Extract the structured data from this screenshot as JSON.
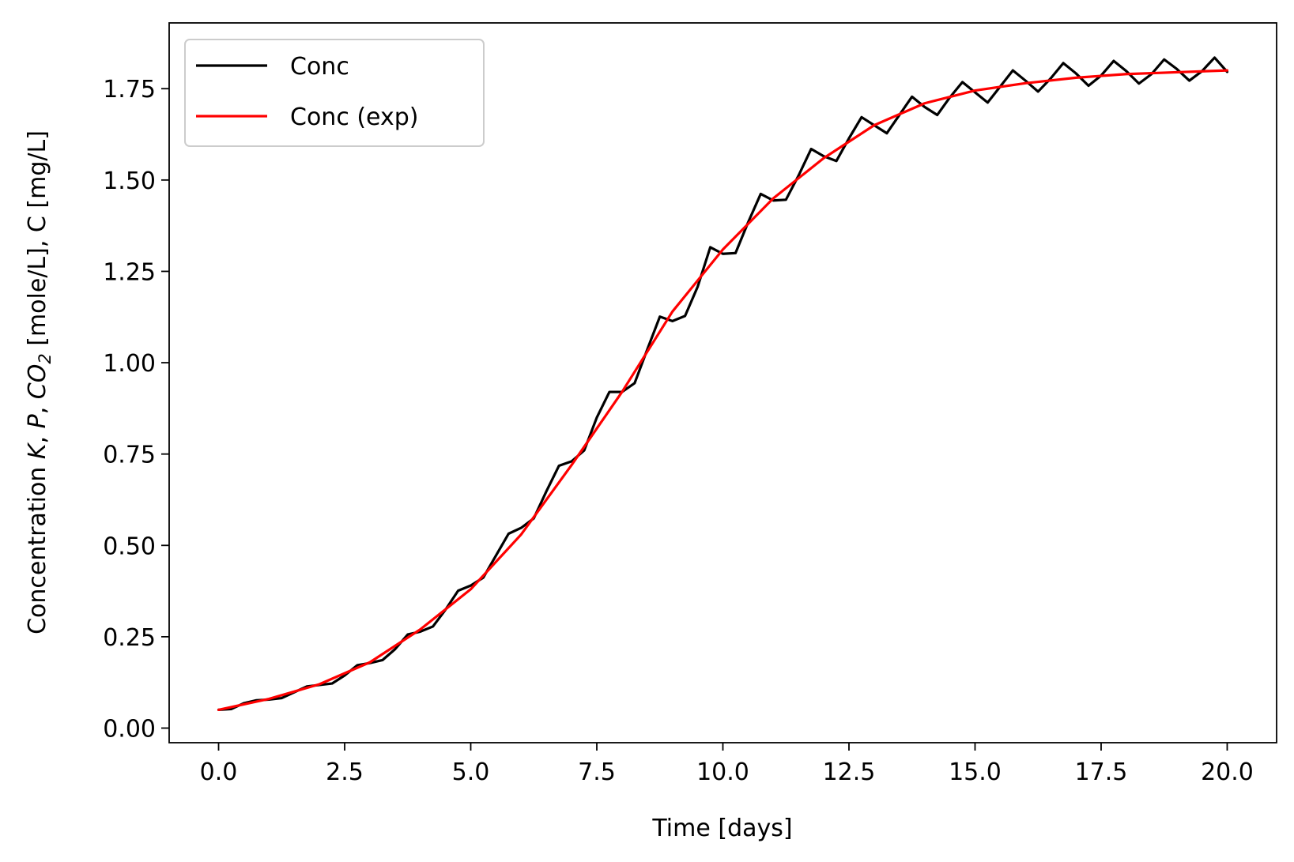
{
  "chart_data": {
    "type": "line",
    "title": "",
    "xlabel": "Time [days]",
    "ylabel": {
      "prefix": "Concentration ",
      "k": "K",
      "sep1": ", ",
      "p": "P",
      "sep2": ", ",
      "co": "CO",
      "sub": "2",
      "suffix": " [mole/L], C [mg/L]"
    },
    "xlim": [
      -0.98,
      20.98
    ],
    "ylim": [
      -0.04,
      1.93
    ],
    "grid": false,
    "legend_position": "upper-left",
    "xticks": [
      0.0,
      2.5,
      5.0,
      7.5,
      10.0,
      12.5,
      15.0,
      17.5,
      20.0
    ],
    "xtick_labels": [
      "0.0",
      "2.5",
      "5.0",
      "7.5",
      "10.0",
      "12.5",
      "15.0",
      "17.5",
      "20.0"
    ],
    "yticks": [
      0.0,
      0.25,
      0.5,
      0.75,
      1.0,
      1.25,
      1.5,
      1.75
    ],
    "ytick_labels": [
      "0.00",
      "0.25",
      "0.50",
      "0.75",
      "1.00",
      "1.25",
      "1.50",
      "1.75"
    ],
    "series": [
      {
        "name": "Conc",
        "color": "#000000",
        "x": [
          0.0,
          0.25,
          0.5,
          0.75,
          1.0,
          1.25,
          1.5,
          1.75,
          2.0,
          2.25,
          2.5,
          2.75,
          3.0,
          3.25,
          3.5,
          3.75,
          4.0,
          4.25,
          4.5,
          4.75,
          5.0,
          5.25,
          5.5,
          5.75,
          6.0,
          6.25,
          6.5,
          6.75,
          7.0,
          7.25,
          7.5,
          7.75,
          8.0,
          8.25,
          8.5,
          8.75,
          9.0,
          9.25,
          9.5,
          9.75,
          10.0,
          10.25,
          10.5,
          10.75,
          11.0,
          11.25,
          11.5,
          11.75,
          12.0,
          12.25,
          12.5,
          12.75,
          13.0,
          13.25,
          13.5,
          13.75,
          14.0,
          14.25,
          14.5,
          14.75,
          15.0,
          15.25,
          15.5,
          15.75,
          16.0,
          16.25,
          16.5,
          16.75,
          17.0,
          17.25,
          17.5,
          17.75,
          18.0,
          18.25,
          18.5,
          18.75,
          19.0,
          19.25,
          19.5,
          19.75,
          20.0
        ],
        "y": [
          0.05,
          0.052,
          0.068,
          0.076,
          0.078,
          0.082,
          0.098,
          0.114,
          0.118,
          0.122,
          0.144,
          0.172,
          0.178,
          0.186,
          0.216,
          0.256,
          0.264,
          0.278,
          0.324,
          0.376,
          0.39,
          0.412,
          0.472,
          0.532,
          0.548,
          0.574,
          0.648,
          0.718,
          0.73,
          0.76,
          0.85,
          0.92,
          0.92,
          0.944,
          1.036,
          1.126,
          1.114,
          1.128,
          1.208,
          1.316,
          1.298,
          1.3,
          1.384,
          1.462,
          1.444,
          1.446,
          1.512,
          1.585,
          1.565,
          1.552,
          1.614,
          1.672,
          1.65,
          1.628,
          1.678,
          1.728,
          1.7,
          1.678,
          1.726,
          1.768,
          1.74,
          1.712,
          1.756,
          1.8,
          1.772,
          1.742,
          1.778,
          1.82,
          1.792,
          1.758,
          1.786,
          1.826,
          1.798,
          1.764,
          1.79,
          1.83,
          1.804,
          1.772,
          1.798,
          1.835,
          1.796
        ]
      },
      {
        "name": "Conc (exp)",
        "color": "#ff0000",
        "x": [
          0,
          1,
          2,
          3,
          4,
          5,
          6,
          7,
          7.5,
          8,
          9,
          10,
          11,
          12,
          13,
          14,
          15,
          16,
          17,
          18,
          19,
          20
        ],
        "y": [
          0.05,
          0.08,
          0.12,
          0.18,
          0.27,
          0.38,
          0.53,
          0.72,
          0.82,
          0.92,
          1.14,
          1.31,
          1.45,
          1.56,
          1.65,
          1.71,
          1.745,
          1.765,
          1.78,
          1.79,
          1.795,
          1.8
        ]
      }
    ]
  }
}
